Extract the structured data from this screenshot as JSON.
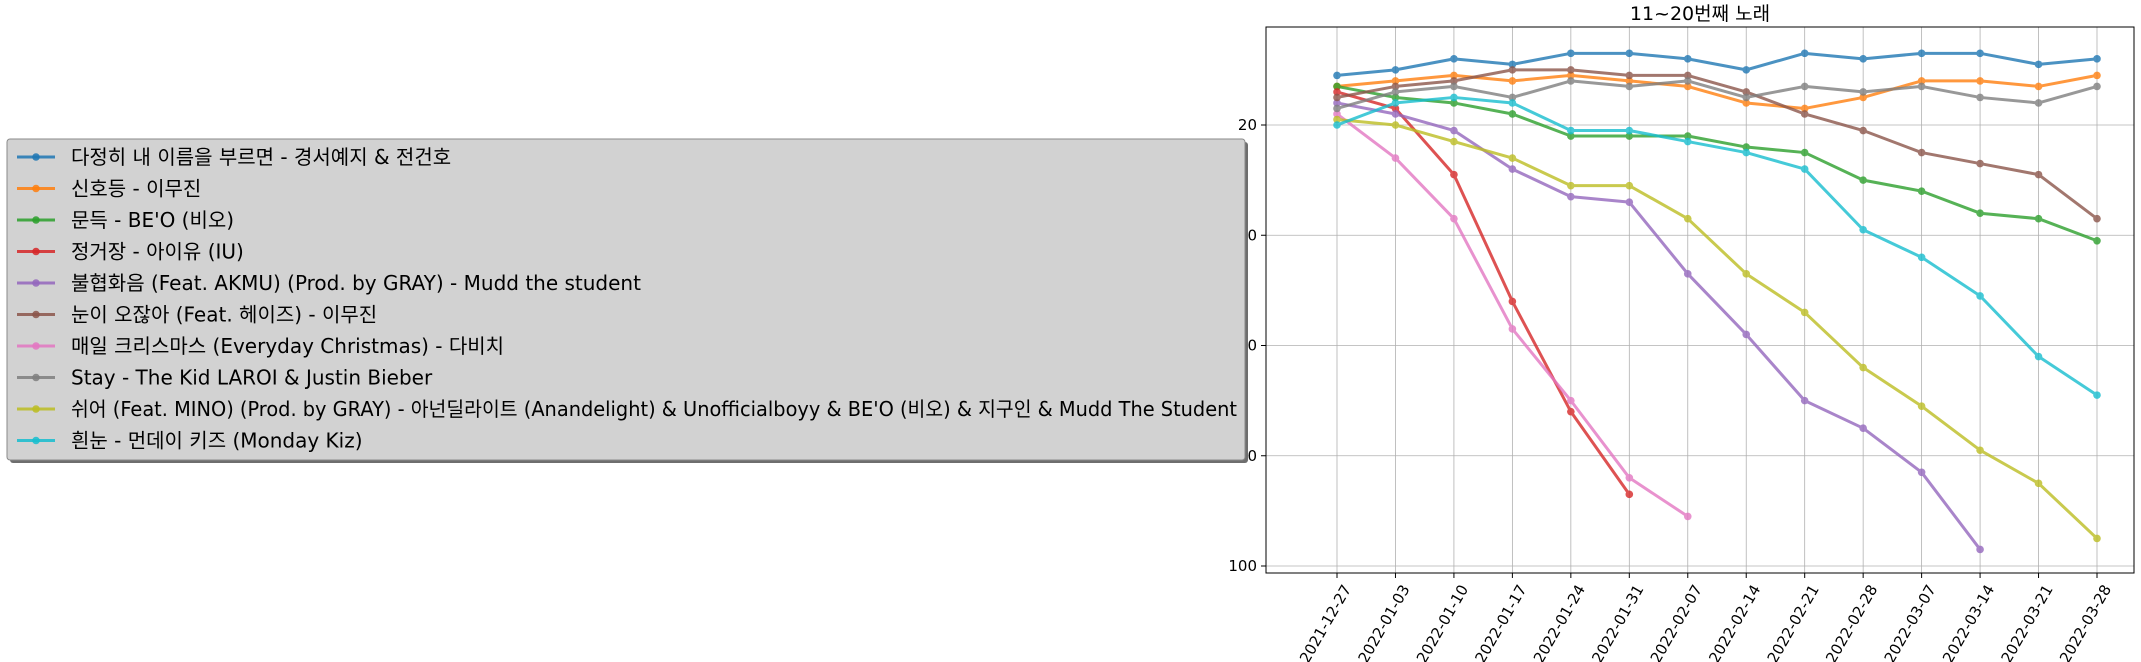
{
  "chart_data": {
    "type": "line",
    "title": "11~20번째 노래",
    "xlabel": "",
    "ylabel": "",
    "y_inverted": true,
    "ylim": [
      1,
      102
    ],
    "yticks": [
      20,
      40,
      60,
      80,
      100
    ],
    "grid": true,
    "legend_position": "left-outside",
    "x": [
      "2021-12-27",
      "2022-01-03",
      "2022-01-10",
      "2022-01-17",
      "2022-01-24",
      "2022-01-31",
      "2022-02-07",
      "2022-02-14",
      "2022-02-21",
      "2022-02-28",
      "2022-03-07",
      "2022-03-14",
      "2022-03-21",
      "2022-03-28"
    ],
    "series": [
      {
        "name": "다정히 내 이름을 부르면 - 경서예지 & 전건호",
        "color": "#1f77b4",
        "values": [
          11,
          10,
          8,
          9,
          7,
          7,
          8,
          10,
          7,
          8,
          7,
          7,
          9,
          8
        ]
      },
      {
        "name": "신호등 - 이무진",
        "color": "#ff7f0e",
        "values": [
          13,
          12,
          11,
          12,
          11,
          12,
          13,
          16,
          17,
          15,
          12,
          12,
          13,
          11
        ]
      },
      {
        "name": "문득 - BE'O (비오)",
        "color": "#2ca02c",
        "values": [
          13,
          15,
          16,
          18,
          22,
          22,
          22,
          24,
          25,
          30,
          32,
          36,
          37,
          41
        ]
      },
      {
        "name": "정거장 - 아이유 (IU)",
        "color": "#d62728",
        "values": [
          14,
          17,
          29,
          52,
          72,
          87,
          null,
          null,
          null,
          null,
          null,
          null,
          null,
          null
        ]
      },
      {
        "name": "불협화음 (Feat. AKMU) (Prod. by GRAY) - Mudd the student",
        "color": "#9467bd",
        "values": [
          16,
          18,
          21,
          28,
          33,
          34,
          47,
          58,
          70,
          75,
          83,
          97,
          null,
          null
        ]
      },
      {
        "name": "눈이 오잖아 (Feat. 헤이즈) - 이무진",
        "color": "#8c564b",
        "values": [
          15,
          13,
          12,
          10,
          10,
          11,
          11,
          14,
          18,
          21,
          25,
          27,
          29,
          37
        ]
      },
      {
        "name": "매일 크리스마스 (Everyday Christmas) - 다비치",
        "color": "#e377c2",
        "values": [
          18,
          26,
          37,
          57,
          70,
          84,
          91,
          null,
          null,
          null,
          null,
          null,
          null,
          null
        ]
      },
      {
        "name": "Stay - The Kid LAROI & Justin Bieber",
        "color": "#7f7f7f",
        "values": [
          17,
          14,
          13,
          15,
          12,
          13,
          12,
          15,
          13,
          14,
          13,
          15,
          16,
          13
        ]
      },
      {
        "name": "쉬어 (Feat. MINO) (Prod. by GRAY) - 아넌딜라이트 (Anandelight) & Unofficialboyy & BE'O (비오) & 지구인 & Mudd The Student",
        "color": "#bcbd22",
        "values": [
          19,
          20,
          23,
          26,
          31,
          31,
          37,
          47,
          54,
          64,
          71,
          79,
          85,
          95
        ]
      },
      {
        "name": "흰눈 - 먼데이 키즈 (Monday Kiz)",
        "color": "#17becf",
        "values": [
          20,
          16,
          15,
          16,
          21,
          21,
          23,
          25,
          28,
          39,
          44,
          51,
          62,
          69
        ]
      }
    ]
  }
}
